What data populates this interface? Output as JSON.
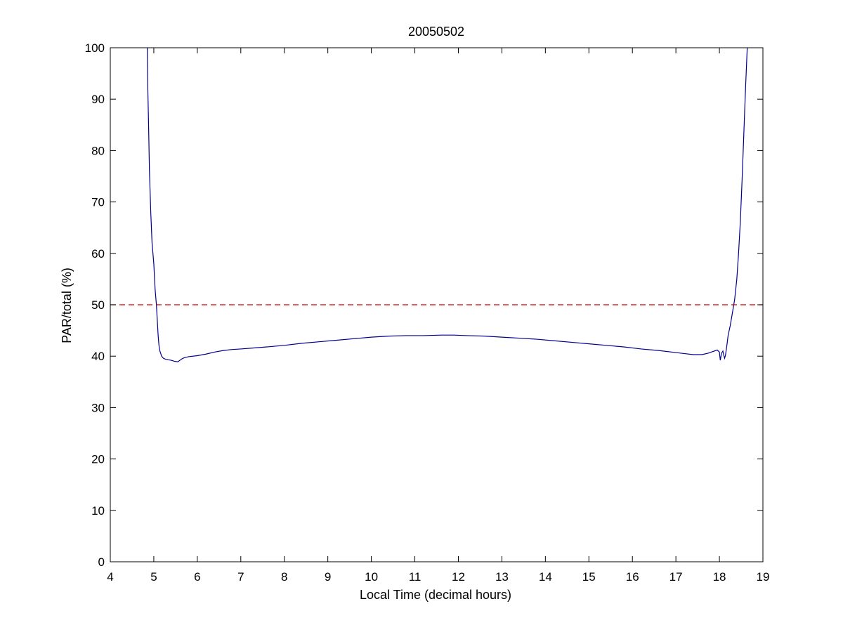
{
  "chart_data": {
    "type": "line",
    "title": "20050502",
    "xlabel": "Local Time (decimal hours)",
    "ylabel": "PAR/total (%)",
    "xlim": [
      4,
      19
    ],
    "ylim": [
      0,
      100
    ],
    "xticks": [
      4,
      5,
      6,
      7,
      8,
      9,
      10,
      11,
      12,
      13,
      14,
      15,
      16,
      17,
      18,
      19
    ],
    "yticks": [
      0,
      10,
      20,
      30,
      40,
      50,
      60,
      70,
      80,
      90,
      100
    ],
    "xtick_labels": [
      "4",
      "5",
      "6",
      "7",
      "8",
      "9",
      "10",
      "11",
      "12",
      "13",
      "14",
      "15",
      "16",
      "17",
      "18",
      "19"
    ],
    "ytick_labels": [
      "0",
      "10",
      "20",
      "30",
      "40",
      "50",
      "60",
      "70",
      "80",
      "90",
      "100"
    ],
    "grid": false,
    "series": [
      {
        "color": "#00008b",
        "style": "solid",
        "x": [
          4.85,
          4.86,
          4.88,
          4.9,
          4.93,
          4.96,
          5.0,
          5.03,
          5.06,
          5.08,
          5.1,
          5.12,
          5.14,
          5.16,
          5.18,
          5.22,
          5.27,
          5.33,
          5.4,
          5.48,
          5.55,
          5.6,
          5.65,
          5.7,
          5.8,
          6.0,
          6.2,
          6.4,
          6.6,
          6.8,
          7.0,
          7.3,
          7.6,
          8.0,
          8.4,
          8.8,
          9.2,
          9.6,
          10.0,
          10.4,
          10.8,
          11.2,
          11.6,
          11.9,
          12.2,
          12.6,
          13.0,
          13.4,
          13.8,
          14.2,
          14.6,
          15.0,
          15.4,
          15.8,
          16.2,
          16.6,
          17.0,
          17.2,
          17.4,
          17.6,
          17.75,
          17.85,
          17.95,
          18.0,
          18.02,
          18.05,
          18.08,
          18.1,
          18.12,
          18.14,
          18.17,
          18.2,
          18.25,
          18.3,
          18.35,
          18.4,
          18.44,
          18.48,
          18.52,
          18.56,
          18.6,
          18.64
        ],
        "y": [
          100,
          93,
          85,
          76,
          68,
          62,
          58,
          53,
          50,
          47,
          44,
          42,
          41,
          40.5,
          40,
          39.6,
          39.4,
          39.3,
          39.2,
          39,
          38.9,
          39.2,
          39.5,
          39.7,
          39.9,
          40.1,
          40.4,
          40.8,
          41.1,
          41.3,
          41.4,
          41.6,
          41.8,
          42.1,
          42.5,
          42.8,
          43.1,
          43.4,
          43.7,
          43.9,
          44.0,
          44.0,
          44.1,
          44.1,
          44.0,
          43.9,
          43.7,
          43.5,
          43.3,
          43.0,
          42.7,
          42.4,
          42.1,
          41.8,
          41.4,
          41.1,
          40.7,
          40.5,
          40.3,
          40.3,
          40.6,
          40.9,
          41.2,
          40.8,
          39.2,
          40.6,
          41.0,
          40.2,
          39.6,
          40.2,
          42.0,
          44.0,
          46.0,
          48.5,
          51,
          55,
          60,
          66,
          74,
          83,
          92,
          100
        ]
      },
      {
        "color": "#cc0000",
        "style": "dashed",
        "x": [
          4,
          19
        ],
        "y": [
          50,
          50
        ]
      }
    ]
  }
}
